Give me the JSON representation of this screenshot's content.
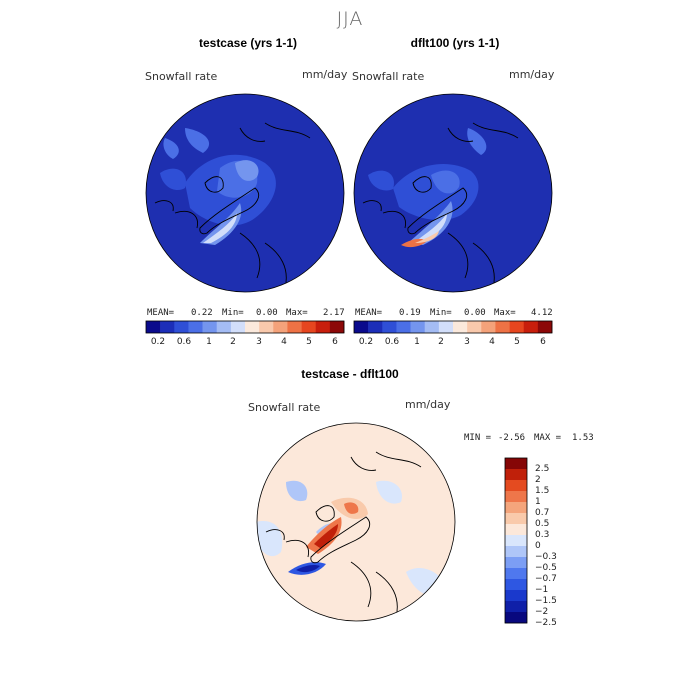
{
  "season": "JJA",
  "panels": [
    {
      "title": "testcase (yrs 1-1)",
      "field": "Snowfall rate",
      "units": "mm/day",
      "mean_label": "MEAN=",
      "mean": "0.22",
      "min_label": "Min=",
      "min": "0.00",
      "max_label": "Max=",
      "max": "2.17"
    },
    {
      "title": "dflt100 (yrs 1-1)",
      "field": "Snowfall rate",
      "units": "mm/day",
      "mean_label": "MEAN=",
      "mean": "0.19",
      "min_label": "Min=",
      "min": "0.00",
      "max_label": "Max=",
      "max": "4.12"
    }
  ],
  "diff_panel": {
    "title": "testcase - dflt100",
    "field": "Snowfall rate",
    "units": "mm/day",
    "min_label": "MIN =",
    "min": "-2.56",
    "max_label": "MAX =",
    "max": "1.53"
  },
  "colors": {
    "abs_scale": [
      "#0a0a8c",
      "#1c2eb8",
      "#2f4fd6",
      "#4b6fe6",
      "#7495ee",
      "#a4bcf4",
      "#d2defa",
      "#fbe9dc",
      "#f9c9ac",
      "#f4a27a",
      "#ee7245",
      "#e6461f",
      "#c81e0c",
      "#8c0808"
    ],
    "diff_scale": [
      "#08087e",
      "#0f1fa8",
      "#1a39cc",
      "#2e57e2",
      "#4f78ee",
      "#7c9ef4",
      "#afc6f8",
      "#d9e6fc",
      "#fce8da",
      "#f9caab",
      "#f4a57c",
      "#ee764a",
      "#e44b20",
      "#c0200a",
      "#850606"
    ],
    "map_fill": "#1e2fb0"
  },
  "chart_data": [
    {
      "type": "heatmap",
      "title": "testcase (yrs 1-1)",
      "variable": "Snowfall rate",
      "units": "mm/day",
      "stats": {
        "mean": 0.22,
        "min": 0.0,
        "max": 2.17
      },
      "colorbar_ticks": [
        "0.2",
        "0.6",
        "1",
        "2",
        "3",
        "4",
        "5",
        "6"
      ]
    },
    {
      "type": "heatmap",
      "title": "dflt100 (yrs 1-1)",
      "variable": "Snowfall rate",
      "units": "mm/day",
      "stats": {
        "mean": 0.19,
        "min": 0.0,
        "max": 4.12
      },
      "colorbar_ticks": [
        "0.2",
        "0.6",
        "1",
        "2",
        "3",
        "4",
        "5",
        "6"
      ]
    },
    {
      "type": "heatmap",
      "title": "testcase - dflt100",
      "variable": "Snowfall rate",
      "units": "mm/day",
      "stats": {
        "min": -2.56,
        "max": 1.53
      },
      "colorbar_ticks": [
        "2.5",
        "2",
        "1.5",
        "1",
        "0.7",
        "0.5",
        "0.3",
        "0",
        "−0.3",
        "−0.5",
        "−0.7",
        "−1",
        "−1.5",
        "−2",
        "−2.5"
      ]
    }
  ]
}
